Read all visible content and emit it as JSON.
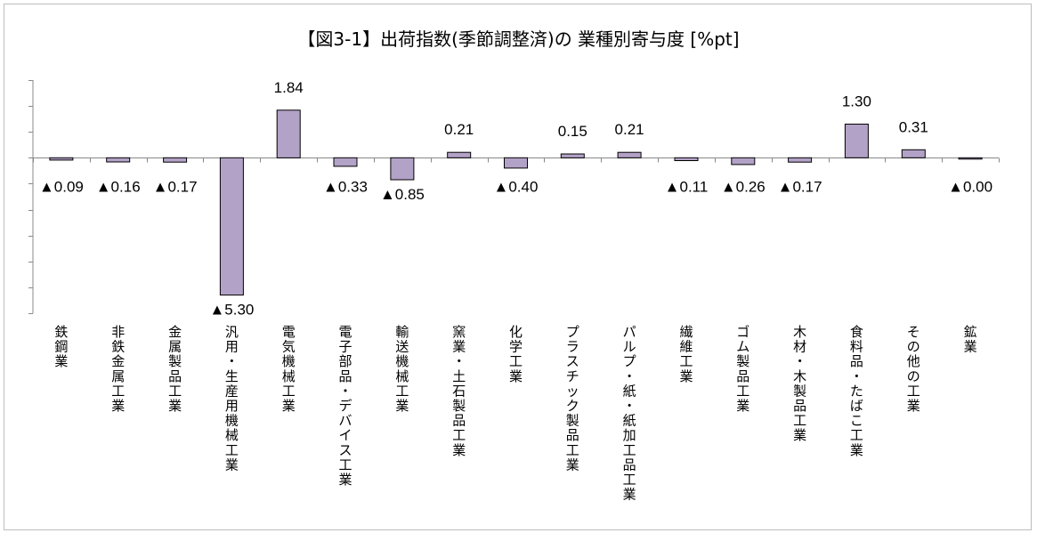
{
  "chart_data": {
    "type": "bar",
    "title": "【図3-1】出荷指数(季節調整済)の 業種別寄与度 [%pt]",
    "categories": [
      "鉄鋼業",
      "非鉄金属工業",
      "金属製品工業",
      "汎用・生産用機械工業",
      "電気機械工業",
      "電子部品・デバイス工業",
      "輸送機械工業",
      "窯業・土石製品工業",
      "化学工業",
      "プラスチック製品工業",
      "パルプ・紙・紙加工品工業",
      "繊維工業",
      "ゴム製品工業",
      "木材・木製品工業",
      "食料品・たばこ工業",
      "その他の工業",
      "鉱業"
    ],
    "values": [
      -0.09,
      -0.16,
      -0.17,
      -5.3,
      1.84,
      -0.33,
      -0.85,
      0.21,
      -0.4,
      0.15,
      0.21,
      -0.11,
      -0.26,
      -0.17,
      1.3,
      0.31,
      -0.001
    ],
    "data_labels": [
      "▲0.09",
      "▲0.16",
      "▲0.17",
      "▲5.30",
      "1.84",
      "▲0.33",
      "▲0.85",
      "0.21",
      "▲0.40",
      "0.15",
      "0.21",
      "▲0.11",
      "▲0.26",
      "▲0.17",
      "1.30",
      "0.31",
      "▲0.00"
    ],
    "ylim": [
      -6.0,
      3.0
    ],
    "y_tick_step": 1.0,
    "xlabel": "",
    "ylabel": "",
    "grid": false,
    "legend": "none",
    "bar_color": "#b3a2c7",
    "bar_border_color": "#000000"
  }
}
